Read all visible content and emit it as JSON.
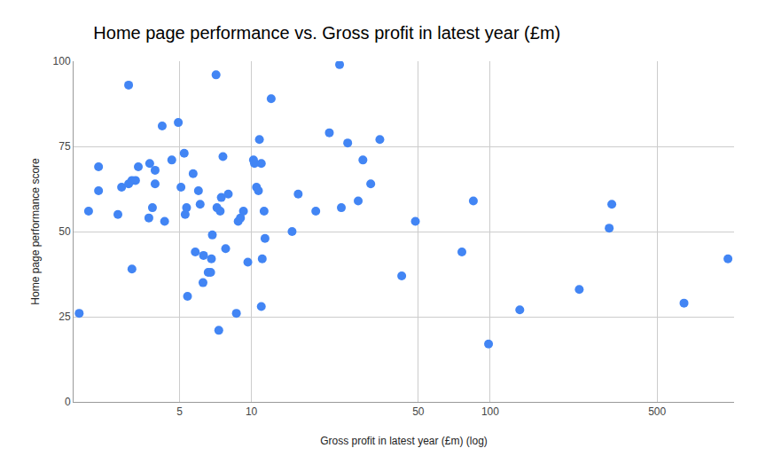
{
  "chart_data": {
    "type": "scatter",
    "title": "Home page performance vs. Gross profit in latest year (£m)",
    "x_label": "Gross profit in latest year (£m) (log)",
    "y_label": "Home page performance score",
    "x": [
      1.9,
      2.08,
      2.29,
      2.29,
      2.76,
      2.86,
      3.06,
      3.06,
      3.16,
      3.27,
      3.16,
      3.36,
      3.72,
      3.75,
      3.85,
      3.95,
      3.95,
      4.23,
      4.33,
      4.64,
      4.94,
      5.07,
      5.23,
      5.28,
      5.35,
      5.4,
      5.7,
      5.82,
      6.0,
      6.1,
      6.27,
      6.3,
      6.59,
      6.75,
      6.8,
      6.86,
      7.11,
      7.17,
      7.3,
      7.4,
      7.48,
      7.6,
      7.8,
      8.0,
      8.65,
      8.8,
      9.0,
      9.26,
      9.66,
      10.2,
      10.3,
      10.5,
      10.7,
      10.8,
      11.0,
      11.1,
      11.0,
      11.3,
      11.4,
      12.1,
      14.8,
      15.7,
      18.6,
      21.2,
      23.4,
      23.8,
      25.3,
      28.0,
      29.3,
      31.6,
      34.5,
      42.6,
      48.6,
      76.1,
      85.0,
      98.4,
      133,
      236,
      315,
      323,
      648,
      990
    ],
    "values": [
      26,
      56,
      69,
      62,
      55,
      63,
      93,
      64,
      65,
      65,
      39,
      69,
      54,
      70,
      57,
      68,
      64,
      81,
      53,
      71,
      82,
      63,
      73,
      55,
      57,
      31,
      67,
      44,
      62,
      58,
      35,
      43,
      38,
      38,
      42,
      49,
      96,
      57,
      21,
      56,
      60,
      72,
      45,
      61,
      26,
      53,
      54,
      56,
      41,
      71,
      70,
      63,
      62,
      77,
      70,
      42,
      28,
      56,
      48,
      89,
      50,
      61,
      56,
      79,
      99,
      57,
      76,
      59,
      71,
      64,
      77,
      37,
      53,
      44,
      59,
      17,
      27,
      33,
      51,
      58,
      29,
      42
    ],
    "color": "#4285f4",
    "marker": "circle",
    "log": "x",
    "xlim": [
      1.8,
      1050
    ],
    "xticks": [
      5,
      10,
      50,
      100,
      500
    ],
    "ylim": [
      0,
      100
    ],
    "yticks": [
      0,
      25,
      50,
      75,
      100
    ],
    "grid": true
  }
}
